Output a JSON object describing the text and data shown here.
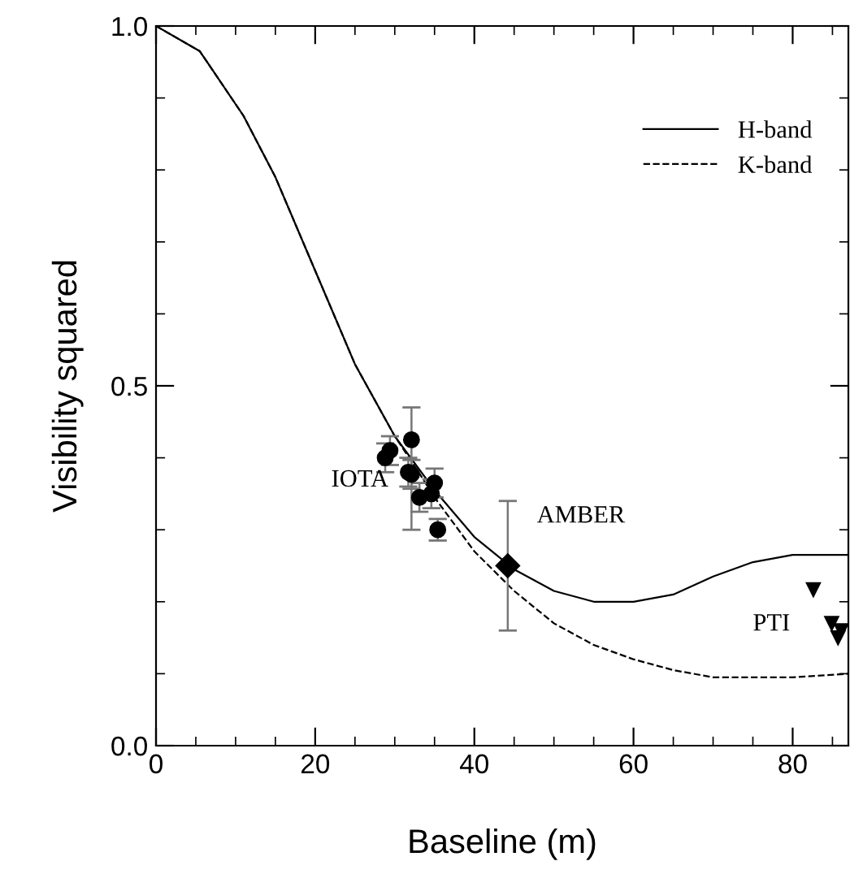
{
  "chart_data": {
    "type": "line",
    "xlabel": "Baseline (m)",
    "ylabel": "Visibility squared",
    "xlim": [
      0,
      87
    ],
    "ylim": [
      0,
      1
    ],
    "xticks": [
      0,
      20,
      40,
      60,
      80
    ],
    "yticks": [
      {
        "value": 0,
        "label": "0.0"
      },
      {
        "value": 0.5,
        "label": "0.5"
      },
      {
        "value": 1,
        "label": "1.0"
      }
    ],
    "grid": false,
    "legend": "top right",
    "series": [
      {
        "name": "H-band",
        "line_style": "solid",
        "color": "#000000",
        "x": [
          0,
          5.5,
          11,
          15,
          20,
          25,
          30,
          35,
          40,
          45,
          50,
          55,
          60,
          65,
          70,
          75,
          80,
          87
        ],
        "values": [
          1.0,
          0.965,
          0.875,
          0.79,
          0.66,
          0.53,
          0.43,
          0.355,
          0.29,
          0.245,
          0.215,
          0.2,
          0.2,
          0.21,
          0.235,
          0.255,
          0.265,
          0.265
        ]
      },
      {
        "name": "K-band",
        "line_style": "dashed",
        "color": "#000000",
        "x": [
          0,
          5.5,
          11,
          15,
          20,
          25,
          30,
          33,
          35,
          40,
          45,
          50,
          55,
          60,
          65,
          70,
          75,
          80,
          87
        ],
        "values": [
          1.0,
          0.965,
          0.875,
          0.79,
          0.66,
          0.53,
          0.43,
          0.38,
          0.345,
          0.27,
          0.215,
          0.17,
          0.14,
          0.12,
          0.105,
          0.095,
          0.095,
          0.095,
          0.1
        ]
      },
      {
        "type": "scatter",
        "marker": "circle",
        "color": "#000000",
        "x": [
          28.8,
          29.4,
          32.1,
          31.7,
          32.1,
          33.1,
          35.0,
          34.6,
          35.4
        ],
        "values": [
          0.4,
          0.41,
          0.425,
          0.38,
          0.377,
          0.345,
          0.365,
          0.35,
          0.3
        ],
        "errors": [
          0.02,
          0.02,
          [
            0.3,
            0.47
          ],
          0.02,
          0.02,
          0.02,
          0.02,
          0.02,
          0.015
        ]
      },
      {
        "type": "scatter",
        "marker": "diamond",
        "color": "#000000",
        "x": [
          44.2
        ],
        "values": [
          0.25
        ],
        "errors": [
          [
            0.16,
            0.34
          ]
        ]
      },
      {
        "type": "scatter",
        "marker": "triangle",
        "color": "#000000",
        "x": [
          82.6,
          84.9,
          85.7,
          86.1
        ],
        "values": [
          0.217,
          0.17,
          0.15,
          0.16
        ]
      }
    ],
    "annotations": [
      "IOTA",
      "AMBER",
      "PTI"
    ]
  }
}
